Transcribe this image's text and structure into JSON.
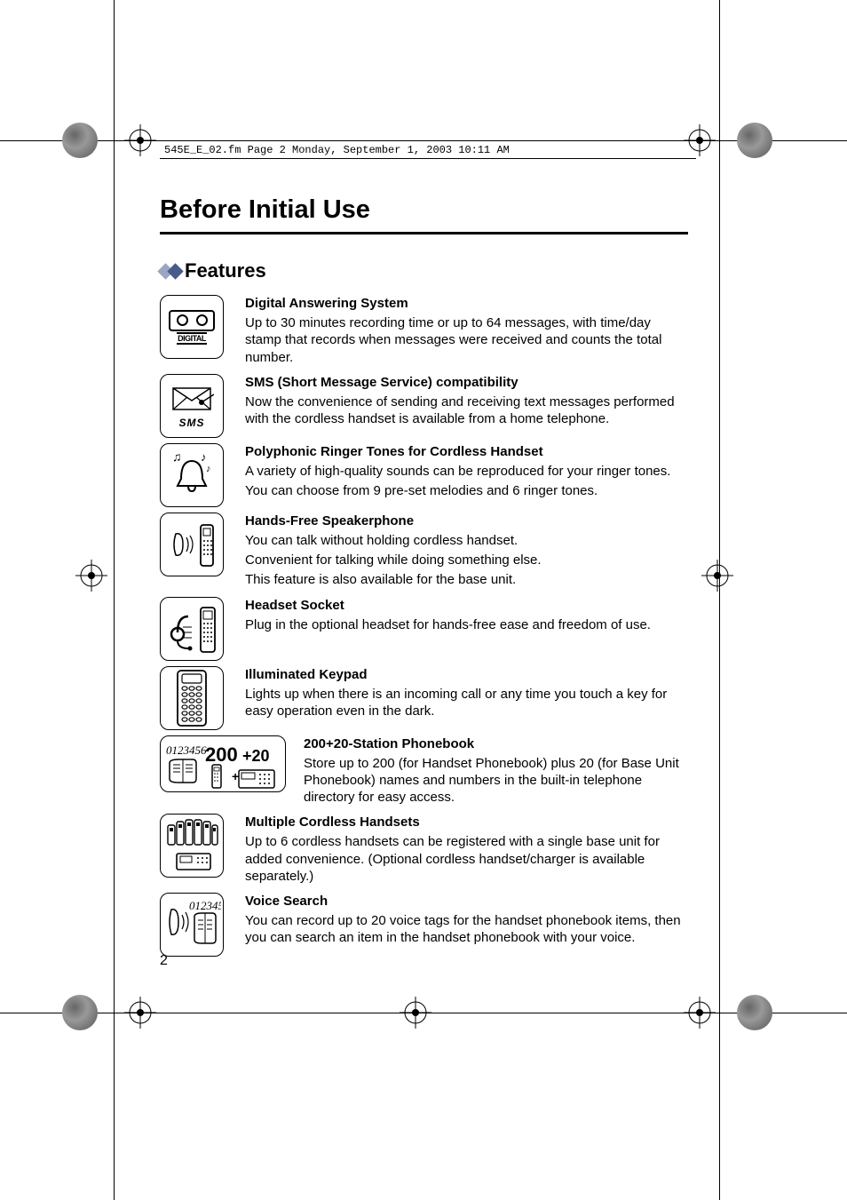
{
  "header": {
    "running_head": "545E_E_02.fm  Page 2  Monday, September 1, 2003  10:11 AM"
  },
  "page": {
    "title": "Before Initial Use",
    "number": "2"
  },
  "section": {
    "title": "Features"
  },
  "colors": {
    "text": "#000000",
    "background": "#ffffff",
    "diamond_left": "#9aa6c4",
    "diamond_right": "#4a5a8a"
  },
  "features": [
    {
      "icon": "digital",
      "heading": "Digital Answering System",
      "body": [
        "Up to 30 minutes recording time or up to 64 messages, with time/day stamp that records when messages were received and counts the total number."
      ]
    },
    {
      "icon": "sms",
      "heading": "SMS (Short Message Service) compatibility",
      "body": [
        "Now the convenience of sending and receiving text messages performed with the cordless handset is available from a home telephone."
      ]
    },
    {
      "icon": "ringer",
      "heading": "Polyphonic Ringer Tones for Cordless Handset",
      "body": [
        "A variety of high-quality sounds can be reproduced for your ringer tones.",
        "You can choose from 9 pre-set melodies and 6 ringer tones."
      ]
    },
    {
      "icon": "speakerphone",
      "heading": "Hands-Free Speakerphone",
      "body": [
        "You can talk without holding cordless handset.",
        "Convenient for talking while doing something else.",
        "This feature is also available for the base unit."
      ]
    },
    {
      "icon": "headset",
      "heading": "Headset Socket",
      "body": [
        "Plug in the optional headset for hands-free ease and freedom of use."
      ]
    },
    {
      "icon": "keypad",
      "heading": "Illuminated Keypad",
      "body": [
        "Lights up when there is an incoming call or any time you touch a key for easy operation even in the dark."
      ]
    },
    {
      "icon": "phonebook",
      "wide": true,
      "heading": "200+20-Station Phonebook",
      "body": [
        "Store up to 200 (for Handset Phonebook) plus 20 (for Base Unit Phonebook) names and numbers in the built-in telephone directory for easy access."
      ]
    },
    {
      "icon": "multihandset",
      "heading": "Multiple Cordless Handsets",
      "body": [
        "Up to 6 cordless handsets can be registered with a single base unit for added convenience. (Optional cordless handset/charger is available separately.)"
      ]
    },
    {
      "icon": "voicesearch",
      "heading": "Voice Search",
      "body": [
        "You can record up to 20 voice tags for the handset phonebook items, then you can search an item in the handset phonebook with your voice."
      ]
    }
  ]
}
